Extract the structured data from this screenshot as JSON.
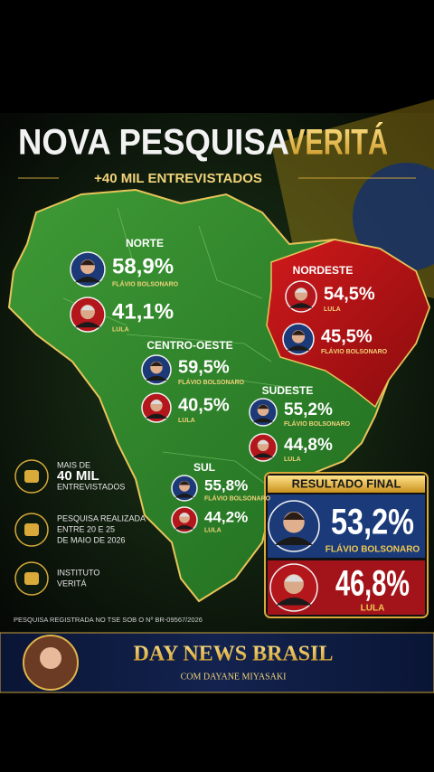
{
  "header": {
    "title": {
      "main": "NOVA PESQUISA",
      "highlight": "VERITÁ"
    },
    "subtitle": "+40 MIL ENTREVISTADOS"
  },
  "regions": [
    {
      "name": "NORTE",
      "candidates": [
        {
          "percent": "58,9%",
          "name": "FLÁVIO BOLSONARO"
        },
        {
          "percent": "41,1%",
          "name": "LULA"
        }
      ]
    },
    {
      "name": "NORDESTE",
      "candidates": [
        {
          "percent": "54,5%",
          "name": "LULA"
        },
        {
          "percent": "45,5%",
          "name": "FLÁVIO BOLSONARO"
        }
      ]
    },
    {
      "name": "CENTRO-OESTE",
      "candidates": [
        {
          "percent": "59,5%",
          "name": "FLÁVIO BOLSONARO"
        },
        {
          "percent": "40,5%",
          "name": "LULA"
        }
      ]
    },
    {
      "name": "SUDESTE",
      "candidates": [
        {
          "percent": "55,2%",
          "name": "FLÁVIO BOLSONARO"
        },
        {
          "percent": "44,8%",
          "name": "LULA"
        }
      ]
    },
    {
      "name": "SUL",
      "candidates": [
        {
          "percent": "55,8%",
          "name": "FLÁVIO BOLSONARO"
        },
        {
          "percent": "44,2%",
          "name": "LULA"
        }
      ]
    }
  ],
  "info": [
    {
      "lines": [
        "MAIS DE",
        "40 MIL",
        "ENTREVISTADOS"
      ]
    },
    {
      "lines": [
        "PESQUISA REALIZADA",
        "ENTRE 20 E 25",
        "DE MAIO DE 2026"
      ]
    },
    {
      "lines": [
        "INSTITUTO",
        "VERITÁ"
      ]
    }
  ],
  "result": {
    "title": "RESULTADO FINAL",
    "candidates": [
      {
        "percent": "53,2%",
        "name": "FLÁVIO BOLSONARO"
      },
      {
        "percent": "46,8%",
        "name": "LULA"
      }
    ]
  },
  "footnote": "PESQUISA REGISTRADA NO TSE SOB O Nº BR-09567/2026",
  "banner": {
    "title": "DAY NEWS BRASIL",
    "subtitle": "COM DAYANE MIYASAKI"
  }
}
